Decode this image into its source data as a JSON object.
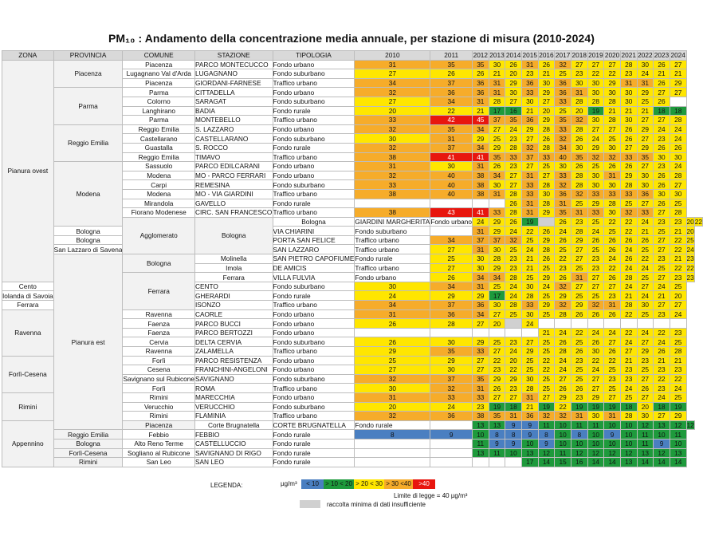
{
  "title": "PM₁₀ : Andamento della concentrazione media annuale, per stazione di misura (2010-2024)",
  "headers": {
    "zona": "ZONA",
    "provincia": "PROVINCIA",
    "comune": "COMUNE",
    "stazione": "STAZIONE",
    "tipologia": "TIPOLOGIA",
    "years": [
      "2010",
      "2011",
      "2012",
      "2013",
      "2014",
      "2015",
      "2016",
      "2017",
      "2018",
      "2019",
      "2020",
      "2021",
      "2022",
      "2023",
      "2024"
    ]
  },
  "rows": [
    {
      "zona": "Pianura ovest",
      "zona_span": 24,
      "provincia": "Piacenza",
      "prov_span": 3,
      "comune": "Piacenza",
      "stazione": "PARCO MONTECUCCO",
      "tipologia": "Fondo urbano",
      "values": [
        "31",
        "35",
        "35",
        "30",
        "26",
        "31",
        "26",
        "32",
        "27",
        "27",
        "27",
        "28",
        "30",
        "26",
        "27"
      ]
    },
    {
      "comune": "Lugagnano Val d'Arda",
      "stazione": "LUGAGNANO",
      "tipologia": "Fondo suburbano",
      "values": [
        "27",
        "26",
        "26",
        "21",
        "20",
        "23",
        "21",
        "25",
        "23",
        "22",
        "22",
        "23",
        "24",
        "21",
        "21"
      ]
    },
    {
      "comune": "Piacenza",
      "stazione": "GIORDANI-FARNESE",
      "tipologia": "Traffico urbano",
      "values": [
        "34",
        "37",
        "36",
        "31",
        "29",
        "36",
        "30",
        "36",
        "30",
        "30",
        "29",
        "31",
        "31",
        "26",
        "29"
      ]
    },
    {
      "provincia": "Parma",
      "prov_span": 4,
      "comune": "Parma",
      "stazione": "CITTADELLA",
      "tipologia": "Fondo urbano",
      "values": [
        "32",
        "36",
        "36",
        "31",
        "30",
        "33",
        "29",
        "36",
        "31",
        "30",
        "30",
        "30",
        "29",
        "27",
        "27"
      ]
    },
    {
      "comune": "Colorno",
      "stazione": "SARAGAT",
      "tipologia": "Fondo suburbano",
      "values": [
        "27",
        "34",
        "31",
        "28",
        "27",
        "30",
        "27",
        "33",
        "28",
        "28",
        "28",
        "30",
        "25",
        "26",
        ""
      ]
    },
    {
      "comune": "Langhirano",
      "stazione": "BADIA",
      "tipologia": "Fondo rurale",
      "values": [
        "20",
        "22",
        "21",
        "17",
        "16",
        "21",
        "20",
        "25",
        "20",
        "19",
        "21",
        "21",
        "21",
        "18",
        "18"
      ]
    },
    {
      "comune": "Parma",
      "stazione": "MONTEBELLO",
      "tipologia": "Traffico urbano",
      "values": [
        "33",
        "42",
        "45",
        "37",
        "35",
        "36",
        "29",
        "35",
        "32",
        "30",
        "28",
        "30",
        "27",
        "27",
        "28"
      ]
    },
    {
      "provincia": "Reggio Emilia",
      "prov_span": 4,
      "comune": "Reggio Emilia",
      "stazione": "S. LAZZARO",
      "tipologia": "Fondo urbano",
      "values": [
        "32",
        "35",
        "34",
        "27",
        "24",
        "29",
        "28",
        "33",
        "28",
        "27",
        "27",
        "26",
        "29",
        "24",
        "24"
      ]
    },
    {
      "comune": "Castellarano",
      "stazione": "CASTELLARANO",
      "tipologia": "Fondo suburbano",
      "values": [
        "30",
        "31",
        "29",
        "25",
        "23",
        "27",
        "26",
        "32",
        "26",
        "24",
        "25",
        "26",
        "27",
        "23",
        "24"
      ]
    },
    {
      "comune": "Guastalla",
      "stazione": "S. ROCCO",
      "tipologia": "Fondo rurale",
      "values": [
        "32",
        "37",
        "34",
        "29",
        "28",
        "32",
        "28",
        "34",
        "30",
        "29",
        "30",
        "27",
        "29",
        "26",
        "26"
      ]
    },
    {
      "comune": "Reggio Emilia",
      "stazione": "TIMAVO",
      "tipologia": "Traffico urbano",
      "values": [
        "38",
        "41",
        "41",
        "35",
        "33",
        "37",
        "33",
        "40",
        "35",
        "32",
        "32",
        "33",
        "35",
        "30",
        "30"
      ]
    },
    {
      "provincia": "Modena",
      "prov_span": 7,
      "comune": "Sassuolo",
      "stazione": "PARCO EDILCARANI",
      "tipologia": "Fondo urbano",
      "values": [
        "31",
        "30",
        "31",
        "26",
        "23",
        "27",
        "25",
        "30",
        "26",
        "25",
        "26",
        "26",
        "27",
        "23",
        "24"
      ]
    },
    {
      "comune": "Modena",
      "stazione": "MO - PARCO FERRARI",
      "tipologia": "Fondo urbano",
      "values": [
        "32",
        "40",
        "38",
        "34",
        "27",
        "31",
        "27",
        "33",
        "28",
        "30",
        "31",
        "29",
        "30",
        "26",
        "28"
      ]
    },
    {
      "comune": "Carpi",
      "stazione": "REMESINA",
      "tipologia": "Fondo suburbano",
      "values": [
        "33",
        "40",
        "38",
        "30",
        "27",
        "33",
        "28",
        "32",
        "28",
        "30",
        "30",
        "28",
        "30",
        "26",
        "27"
      ]
    },
    {
      "comune": "Modena",
      "stazione": "MO - VIA GIARDINI",
      "tipologia": "Traffico urbano",
      "values": [
        "38",
        "40",
        "38",
        "31",
        "28",
        "33",
        "30",
        "36",
        "32",
        "33",
        "33",
        "33",
        "36",
        "30",
        "30"
      ]
    },
    {
      "comune": "Mirandola",
      "stazione": "GAVELLO",
      "tipologia": "Fondo rurale",
      "values": [
        "",
        "",
        "",
        "",
        "26",
        "31",
        "28",
        "31",
        "25",
        "29",
        "28",
        "25",
        "27",
        "26",
        "25"
      ]
    },
    {
      "comune": "Fiorano Modenese",
      "stazione": "CIRC. SAN FRANCESCO",
      "tipologia": "Traffico urbano",
      "values": [
        "38",
        "43",
        "41",
        "33",
        "28",
        "31",
        "29",
        "35",
        "31",
        "33",
        "30",
        "32",
        "33",
        "27",
        "28"
      ]
    },
    {
      "zona": "Agglomerato",
      "zona_span": 4,
      "provincia": "Bologna",
      "prov_span": 4,
      "comune": "Bologna",
      "stazione": "GIARDINI MARGHERITA",
      "tipologia": "Fondo urbano",
      "values": [
        "24",
        "29",
        "26",
        "19",
        "",
        "26",
        "23",
        "25",
        "22",
        "22",
        "24",
        "23",
        "23",
        "20",
        "22"
      ]
    },
    {
      "comune": "Bologna",
      "stazione": "VIA CHIARINI",
      "tipologia": "Fondo suburbano",
      "values": [
        "",
        "31",
        "29",
        "24",
        "22",
        "26",
        "24",
        "28",
        "24",
        "25",
        "22",
        "21",
        "25",
        "21",
        "20"
      ]
    },
    {
      "comune": "Bologna",
      "stazione": "PORTA SAN FELICE",
      "tipologia": "Traffico urbano",
      "values": [
        "34",
        "37",
        "37",
        "32",
        "25",
        "29",
        "26",
        "29",
        "26",
        "26",
        "26",
        "26",
        "27",
        "22",
        "25"
      ]
    },
    {
      "comune": "San Lazzaro di Savena",
      "stazione": "SAN LAZZARO",
      "tipologia": "Traffico urbano",
      "values": [
        "27",
        "31",
        "30",
        "25",
        "24",
        "28",
        "25",
        "27",
        "25",
        "26",
        "24",
        "25",
        "27",
        "22",
        "24"
      ]
    },
    {
      "zona": "Pianura est",
      "zona_span": 19,
      "provincia": "Bologna",
      "prov_span": 2,
      "comune": "Molinella",
      "stazione": "SAN PIETRO CAPOFIUME",
      "tipologia": "Fondo rurale",
      "values": [
        "25",
        "30",
        "28",
        "23",
        "21",
        "26",
        "22",
        "27",
        "23",
        "24",
        "26",
        "22",
        "23",
        "21",
        "23"
      ]
    },
    {
      "comune": "Imola",
      "stazione": "DE AMICIS",
      "tipologia": "Traffico urbano",
      "values": [
        "27",
        "30",
        "29",
        "23",
        "21",
        "25",
        "23",
        "25",
        "23",
        "22",
        "24",
        "24",
        "25",
        "22",
        "22"
      ]
    },
    {
      "provincia": "Ferrara",
      "prov_span": 4,
      "comune": "Ferrara",
      "stazione": "VILLA FULVIA",
      "tipologia": "Fondo urbano",
      "values": [
        "26",
        "34",
        "34",
        "28",
        "25",
        "29",
        "26",
        "31",
        "27",
        "26",
        "28",
        "25",
        "27",
        "23",
        "23"
      ]
    },
    {
      "comune": "Cento",
      "stazione": "CENTO",
      "tipologia": "Fondo suburbano",
      "values": [
        "30",
        "34",
        "31",
        "25",
        "24",
        "30",
        "24",
        "32",
        "27",
        "27",
        "27",
        "24",
        "27",
        "24",
        "25"
      ]
    },
    {
      "comune": "Iolanda di Savoia",
      "stazione": "GHERARDI",
      "tipologia": "Fondo rurale",
      "values": [
        "24",
        "29",
        "29",
        "17",
        "24",
        "28",
        "25",
        "29",
        "25",
        "25",
        "23",
        "21",
        "24",
        "21",
        "20"
      ]
    },
    {
      "comune": "Ferrara",
      "stazione": "ISONZO",
      "tipologia": "Traffico urbano",
      "values": [
        "34",
        "37",
        "36",
        "30",
        "28",
        "33",
        "29",
        "32",
        "29",
        "32",
        "31",
        "28",
        "30",
        "27",
        "27"
      ]
    },
    {
      "provincia": "Ravenna",
      "prov_span": 5,
      "comune": "Ravenna",
      "stazione": "CAORLE",
      "tipologia": "Fondo urbano",
      "values": [
        "31",
        "36",
        "34",
        "27",
        "25",
        "30",
        "25",
        "28",
        "26",
        "26",
        "26",
        "22",
        "25",
        "23",
        "24"
      ]
    },
    {
      "comune": "Faenza",
      "stazione": "PARCO BUCCI",
      "tipologia": "Fondo urbano",
      "values": [
        "26",
        "28",
        "27",
        "20",
        "",
        "24",
        "",
        "",
        "",
        "",
        "",
        "",
        "",
        "",
        ""
      ]
    },
    {
      "comune": "Faenza",
      "stazione": "PARCO BERTOZZI",
      "tipologia": "Fondo urbano",
      "values": [
        "",
        "",
        "",
        "",
        "",
        "",
        "21",
        "24",
        "22",
        "24",
        "24",
        "22",
        "24",
        "22",
        "23"
      ]
    },
    {
      "comune": "Cervia",
      "stazione": "DELTA CERVIA",
      "tipologia": "Fondo suburbano",
      "values": [
        "26",
        "30",
        "29",
        "25",
        "23",
        "27",
        "25",
        "26",
        "25",
        "26",
        "27",
        "24",
        "27",
        "24",
        "25"
      ]
    },
    {
      "comune": "Ravenna",
      "stazione": "ZALAMELLA",
      "tipologia": "Traffico urbano",
      "values": [
        "29",
        "35",
        "33",
        "27",
        "24",
        "29",
        "25",
        "28",
        "26",
        "30",
        "26",
        "27",
        "29",
        "26",
        "28"
      ]
    },
    {
      "provincia": "Forlì-Cesena",
      "prov_span": 4,
      "comune": "Forlì",
      "stazione": "PARCO RESISTENZA",
      "tipologia": "Fondo urbano",
      "values": [
        "25",
        "29",
        "27",
        "22",
        "20",
        "25",
        "22",
        "24",
        "23",
        "22",
        "22",
        "21",
        "23",
        "21",
        "21"
      ]
    },
    {
      "comune": "Cesena",
      "stazione": "FRANCHINI-ANGELONI",
      "tipologia": "Fondo urbano",
      "values": [
        "27",
        "30",
        "27",
        "23",
        "22",
        "25",
        "22",
        "24",
        "25",
        "24",
        "25",
        "23",
        "25",
        "23",
        "23"
      ]
    },
    {
      "comune": "Savignano sul Rubicone",
      "stazione": "SAVIGNANO",
      "tipologia": "Fondo suburbano",
      "values": [
        "32",
        "37",
        "35",
        "29",
        "29",
        "30",
        "25",
        "27",
        "25",
        "27",
        "23",
        "23",
        "27",
        "22",
        "22"
      ]
    },
    {
      "comune": "Forlì",
      "stazione": "ROMA",
      "tipologia": "Traffico urbano",
      "values": [
        "30",
        "32",
        "31",
        "26",
        "23",
        "28",
        "25",
        "26",
        "26",
        "27",
        "25",
        "24",
        "26",
        "23",
        "24"
      ]
    },
    {
      "provincia": "Rimini",
      "prov_span": 3,
      "comune": "Rimini",
      "stazione": "MARECCHIA",
      "tipologia": "Fondo urbano",
      "values": [
        "31",
        "33",
        "33",
        "27",
        "27",
        "31",
        "27",
        "29",
        "23",
        "29",
        "27",
        "25",
        "27",
        "24",
        "25"
      ]
    },
    {
      "comune": "Verucchio",
      "stazione": "VERUCCHIO",
      "tipologia": "Fondo suburbano",
      "values": [
        "20",
        "24",
        "23",
        "19",
        "18",
        "21",
        "19",
        "22",
        "19",
        "19",
        "19",
        "18",
        "20",
        "18",
        "19"
      ]
    },
    {
      "comune": "Rimini",
      "stazione": "FLAMINIA",
      "tipologia": "Traffico urbano",
      "values": [
        "32",
        "36",
        "38",
        "35",
        "31",
        "36",
        "32",
        "32",
        "31",
        "30",
        "31",
        "28",
        "30",
        "27",
        "29"
      ]
    },
    {
      "zona": "Appennino",
      "zona_span": 5,
      "provincia": "Piacenza",
      "prov_span": 1,
      "comune": "Corte Brugnatella",
      "stazione": "CORTE BRUGNATELLA",
      "tipologia": "Fondo rurale",
      "values": [
        "",
        "13",
        "13",
        "9",
        "9",
        "11",
        "10",
        "11",
        "11",
        "10",
        "10",
        "12",
        "13",
        "12",
        "12"
      ]
    },
    {
      "provincia": "Reggio Emilia",
      "prov_span": 1,
      "comune": "Febbio",
      "stazione": "FEBBIO",
      "tipologia": "Fondo rurale",
      "values": [
        "8",
        "9",
        "10",
        "8",
        "8",
        "9",
        "8",
        "10",
        "8",
        "10",
        "9",
        "10",
        "11",
        "10",
        "11"
      ]
    },
    {
      "provincia": "Bologna",
      "prov_span": 1,
      "comune": "Alto Reno Terme",
      "stazione": "CASTELLUCCIO",
      "tipologia": "Fondo rurale",
      "values": [
        "",
        "",
        "11",
        "9",
        "9",
        "10",
        "9",
        "10",
        "10",
        "10",
        "10",
        "10",
        "11",
        "9",
        "10"
      ]
    },
    {
      "provincia": "Forlì-Cesena",
      "prov_span": 1,
      "comune": "Sogliano al Rubicone",
      "stazione": "SAVIGNANO DI RIGO",
      "tipologia": "Fondo rurale",
      "values": [
        "",
        "",
        "13",
        "11",
        "10",
        "13",
        "12",
        "11",
        "12",
        "12",
        "12",
        "12",
        "13",
        "12",
        "13"
      ]
    },
    {
      "provincia": "Rimini",
      "prov_span": 1,
      "comune": "San Leo",
      "stazione": "SAN LEO",
      "tipologia": "Fondo rurale",
      "values": [
        "",
        "",
        "",
        "",
        "",
        "17",
        "14",
        "15",
        "16",
        "14",
        "14",
        "13",
        "14",
        "14",
        "14"
      ]
    }
  ],
  "insufficient_cells": [
    "17-4",
    "28-4"
  ],
  "legend": {
    "title": "LEGENDA:",
    "unit": "µg/m³",
    "classes": [
      {
        "label": "< 10",
        "color": "#4a7fc1"
      },
      {
        "label": "> 10 < 20",
        "color": "#1e9a3c"
      },
      {
        "label": "> 20 < 30",
        "color": "#ffe600"
      },
      {
        "label": "> 30 <40",
        "color": "#f6ac2a"
      },
      {
        "label": ">40",
        "color": "#e8160e"
      }
    ],
    "limit": "Limite di legge = 40 µg/m³",
    "insufficient": "raccolta minima di dati insufficiente",
    "insufficient_color": "#d0d0d0"
  }
}
